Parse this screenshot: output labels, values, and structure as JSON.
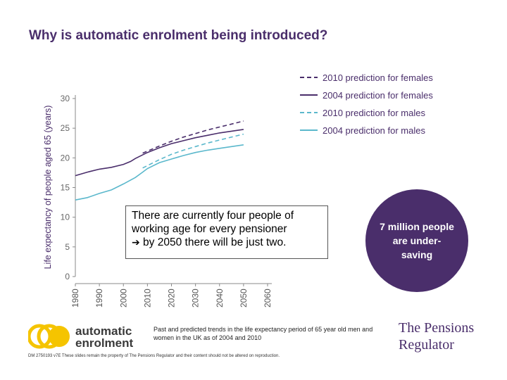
{
  "slide": {
    "title": "Why is automatic enrolment being introduced?",
    "callout_line1": "There are currently four people of",
    "callout_line2": "working age for every pensioner",
    "callout_line3": "by 2050 there will be just two.",
    "callout_arrow": "➔",
    "circle_text": "7 million people are under-saving",
    "caption": "Past and predicted trends in the life expectancy period of 65 year old men and women in the UK as of 2004 and 2010",
    "footer": "DM 2750193 v7E These slides remain the property of The Pensions Regulator and their content should not be altered on reproduction.",
    "ae_logo_line1": "automatic",
    "ae_logo_line2": "enrolment",
    "tpr_logo_line1": "The Pensions",
    "tpr_logo_line2": "Regulator",
    "colors": {
      "title": "#4a2e6b",
      "female": "#4a2e6b",
      "male": "#5bb8cc",
      "circle": "#4a2e6b",
      "ae_yellow": "#f5c400"
    }
  },
  "chart_data": {
    "type": "line",
    "ylabel": "Life expectancy of people aged 65 (years)",
    "xlabel": "",
    "xlim": [
      1980,
      2060
    ],
    "ylim": [
      0,
      30
    ],
    "xticks": [
      1980,
      1990,
      2000,
      2010,
      2020,
      2030,
      2040,
      2050,
      2060
    ],
    "yticks": [
      0,
      5,
      10,
      15,
      20,
      25,
      30
    ],
    "legend_position": "top-right",
    "series": [
      {
        "name": "2010 prediction for females",
        "style": "dashed",
        "color": "#4a2e6b",
        "x": [
          2008,
          2015,
          2020,
          2025,
          2030,
          2035,
          2040,
          2045,
          2050
        ],
        "y": [
          20.8,
          22.0,
          22.8,
          23.5,
          24.1,
          24.7,
          25.2,
          25.7,
          26.2
        ]
      },
      {
        "name": "2004 prediction for females",
        "style": "solid",
        "color": "#4a2e6b",
        "x": [
          1980,
          1985,
          1990,
          1995,
          2000,
          2003,
          2005,
          2010,
          2015,
          2020,
          2025,
          2030,
          2035,
          2040,
          2045,
          2050
        ],
        "y": [
          17.0,
          17.6,
          18.1,
          18.4,
          18.9,
          19.4,
          19.9,
          20.9,
          21.7,
          22.4,
          22.9,
          23.4,
          23.8,
          24.2,
          24.5,
          24.8
        ]
      },
      {
        "name": "2010 prediction for males",
        "style": "dashed",
        "color": "#5bb8cc",
        "x": [
          2008,
          2015,
          2020,
          2025,
          2030,
          2035,
          2040,
          2045,
          2050
        ],
        "y": [
          18.3,
          19.7,
          20.6,
          21.3,
          21.9,
          22.5,
          23.0,
          23.5,
          24.0
        ]
      },
      {
        "name": "2004 prediction for males",
        "style": "solid",
        "color": "#5bb8cc",
        "x": [
          1980,
          1985,
          1990,
          1995,
          2000,
          2005,
          2008,
          2010,
          2015,
          2020,
          2025,
          2030,
          2035,
          2040,
          2045,
          2050
        ],
        "y": [
          12.9,
          13.3,
          14.0,
          14.6,
          15.6,
          16.7,
          17.6,
          18.2,
          19.2,
          19.8,
          20.4,
          20.9,
          21.3,
          21.6,
          21.9,
          22.2
        ]
      }
    ]
  }
}
